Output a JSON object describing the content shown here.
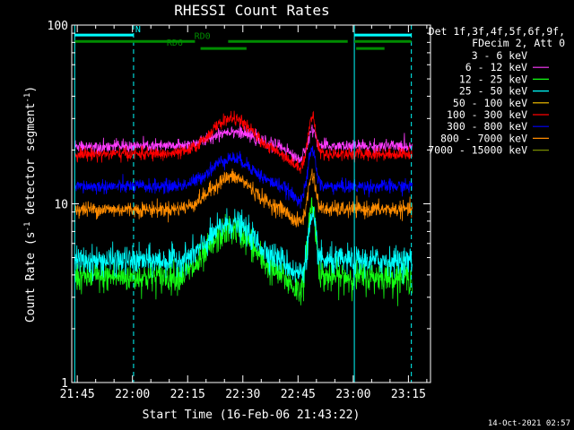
{
  "chart_data": {
    "type": "line",
    "title": "RHESSI Count Rates",
    "xlabel": "Start Time (16-Feb-06 21:43:22)",
    "ylabel_main": "Count Rate (s",
    "ylabel_sup1": "-1",
    "ylabel_mid": " detector segment",
    "ylabel_sup2": "-1",
    "ylabel_end": ")",
    "yscale": "log",
    "ylim": [
      1,
      100
    ],
    "xlim_minutes": [
      -1.5,
      96
    ],
    "x_ticks": [
      {
        "t": 0,
        "label": "21:45"
      },
      {
        "t": 15,
        "label": "22:00"
      },
      {
        "t": 30,
        "label": "22:15"
      },
      {
        "t": 45,
        "label": "22:30"
      },
      {
        "t": 60,
        "label": "22:45"
      },
      {
        "t": 75,
        "label": "23:00"
      },
      {
        "t": 90,
        "label": "23:15"
      }
    ],
    "y_ticks": [
      {
        "v": 1,
        "label": "1"
      },
      {
        "v": 10,
        "label": "10"
      },
      {
        "v": 100,
        "label": "100"
      }
    ],
    "legend_header": [
      "Det 1f,3f,4f,5f,6f,9f,",
      "FDecim 2, Att 0"
    ],
    "series": [
      {
        "name": "3 - 6 keV",
        "color": "#000000",
        "base": 3.2,
        "bump": 2.9,
        "flare": 3.0,
        "noise": 0.22
      },
      {
        "name": "6 - 12 keV",
        "color": "#ff3cff",
        "base": 21,
        "bump": 4.5,
        "flare": 5.5,
        "noise": 0.04
      },
      {
        "name": "12 - 25 keV",
        "color": "#14ff14",
        "base": 3.9,
        "bump": 3.3,
        "flare": 6.0,
        "noise": 0.1
      },
      {
        "name": "25 - 50 keV",
        "color": "#00ffff",
        "base": 4.8,
        "bump": 3.0,
        "flare": 3.5,
        "noise": 0.09
      },
      {
        "name": "50 - 100 keV",
        "color": "#ffc800",
        "base": 11,
        "bump": 4.2,
        "flare": 5.0,
        "noise": 0.05
      },
      {
        "name": "100 - 300 keV",
        "color": "#ff0000",
        "base": 19,
        "bump": 11.0,
        "flare": 12.0,
        "noise": 0.04
      },
      {
        "name": "300 - 800 keV",
        "color": "#0000ff",
        "base": 12.5,
        "bump": 5.5,
        "flare": 8.0,
        "noise": 0.045
      },
      {
        "name": "800 - 7000 keV",
        "color": "#ff8c00",
        "base": 9.3,
        "bump": 4.8,
        "flare": 5.5,
        "noise": 0.05
      },
      {
        "name": "7000 - 15000 keV",
        "color": "#788c00",
        "base": 10,
        "bump": 4,
        "flare": 4,
        "noise": 0.04
      }
    ],
    "vlines": [
      {
        "t": -0.7,
        "style": "solid"
      },
      {
        "t": 15.3,
        "style": "dashed"
      },
      {
        "t": 75.3,
        "style": "solid"
      },
      {
        "t": 90.8,
        "style": "dashed"
      }
    ],
    "flag_bars": [
      {
        "label": "N",
        "color": "#00ffff",
        "segments": [
          [
            -0.7,
            15.3
          ],
          [
            75.3,
            90.8
          ]
        ],
        "level": 88,
        "label_t": 16.5
      },
      {
        "label": "RD0",
        "color": "#008c00",
        "segments": [
          [
            -0.7,
            32.0
          ],
          [
            41.0,
            73.5
          ],
          [
            75.3,
            90.8
          ]
        ],
        "level": 81,
        "label_t": 34.0
      },
      {
        "label": "RD6",
        "color": "#008c00",
        "segments": [
          [
            33.5,
            46.0
          ],
          [
            75.8,
            83.5
          ]
        ],
        "level": 74,
        "label_t": 26.5
      }
    ],
    "footer": "14-Oct-2021 02:57"
  }
}
